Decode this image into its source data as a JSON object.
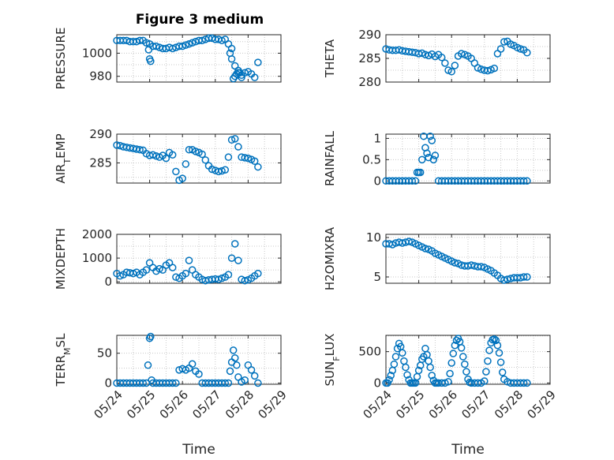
{
  "figure": {
    "title": "Figure 3 medium",
    "xlabel": "Time",
    "marker_color": "#0072bd"
  },
  "chart_data": [
    {
      "type": "scatter",
      "ylabel": "PRESSURE",
      "title": "Figure 3 medium",
      "xlim": [
        0,
        5
      ],
      "ylim": [
        975,
        1016
      ],
      "yticks": [
        980,
        1000
      ],
      "grid": true,
      "x": [
        0.0,
        0.1,
        0.2,
        0.3,
        0.4,
        0.5,
        0.6,
        0.7,
        0.8,
        0.9,
        1.0,
        1.1,
        1.2,
        1.3,
        1.4,
        1.5,
        1.6,
        1.7,
        1.8,
        1.9,
        2.0,
        2.1,
        2.2,
        2.3,
        2.4,
        2.5,
        2.6,
        2.7,
        2.8,
        2.9,
        3.0,
        3.1,
        3.2,
        3.3,
        3.4,
        3.5,
        3.6,
        3.7,
        3.8,
        3.9,
        4.0,
        4.1,
        4.2,
        4.3,
        0.97,
        1.0,
        1.03,
        3.45,
        3.5,
        3.55,
        3.6,
        3.65,
        3.7,
        3.75,
        3.8
      ],
      "y": [
        1011,
        1011,
        1011,
        1011,
        1010,
        1010,
        1010,
        1011,
        1011,
        1009,
        1008,
        1006,
        1006,
        1005,
        1004,
        1004,
        1005,
        1004,
        1005,
        1006,
        1006,
        1007,
        1008,
        1009,
        1010,
        1011,
        1011,
        1012,
        1013,
        1013,
        1012,
        1012,
        1011,
        1012,
        1008,
        1004,
        989,
        983,
        981,
        983,
        984,
        982,
        979,
        992,
        1003,
        995,
        993,
        1000,
        995,
        978,
        980,
        982,
        985,
        983,
        979
      ]
    },
    {
      "type": "scatter",
      "ylabel": "THETA",
      "xlim": [
        0,
        5
      ],
      "ylim": [
        280,
        290
      ],
      "yticks": [
        280,
        285,
        290
      ],
      "grid": true,
      "x": [
        0.0,
        0.1,
        0.2,
        0.3,
        0.4,
        0.5,
        0.6,
        0.7,
        0.8,
        0.9,
        1.0,
        1.1,
        1.2,
        1.3,
        1.4,
        1.5,
        1.6,
        1.7,
        1.8,
        1.9,
        2.0,
        2.1,
        2.2,
        2.3,
        2.4,
        2.5,
        2.6,
        2.7,
        2.8,
        2.9,
        3.0,
        3.1,
        3.2,
        3.3,
        3.4,
        3.5,
        3.6,
        3.7,
        3.8,
        3.9,
        4.0,
        4.1,
        4.2,
        4.3
      ],
      "y": [
        287,
        286.8,
        286.7,
        286.7,
        286.8,
        286.6,
        286.5,
        286.4,
        286.3,
        286.2,
        286,
        286.1,
        285.8,
        285.6,
        285.9,
        285.4,
        285.8,
        285.2,
        284,
        282.5,
        282.2,
        283.5,
        285.5,
        286,
        285.8,
        285.5,
        285,
        284,
        283,
        282.7,
        282.5,
        282.4,
        282.6,
        282.9,
        286,
        287,
        288.5,
        288.6,
        288,
        287.7,
        287.3,
        287,
        286.8,
        286.2
      ]
    },
    {
      "type": "scatter",
      "ylabel": "AIR_TEMP",
      "xlim": [
        0,
        5
      ],
      "ylim": [
        281.5,
        290
      ],
      "yticks": [
        285,
        290
      ],
      "grid": true,
      "x": [
        0.0,
        0.1,
        0.2,
        0.3,
        0.4,
        0.5,
        0.6,
        0.7,
        0.8,
        0.9,
        1.0,
        1.1,
        1.2,
        1.3,
        1.4,
        1.5,
        1.6,
        1.7,
        1.8,
        1.9,
        2.0,
        2.1,
        2.2,
        2.3,
        2.4,
        2.5,
        2.6,
        2.7,
        2.8,
        2.9,
        3.0,
        3.1,
        3.2,
        3.3,
        3.4,
        3.5,
        3.6,
        3.7,
        3.8,
        3.9,
        4.0,
        4.1,
        4.2,
        4.3
      ],
      "y": [
        288.1,
        288,
        287.8,
        287.7,
        287.6,
        287.5,
        287.4,
        287.3,
        287.2,
        286.6,
        286.3,
        286.4,
        286.2,
        286,
        286.3,
        285.8,
        286.8,
        286.4,
        283.5,
        282,
        282.3,
        284.8,
        287.3,
        287.3,
        287,
        286.8,
        286.5,
        285.5,
        284.5,
        283.9,
        283.7,
        283.5,
        283.6,
        283.8,
        286,
        289,
        289.2,
        287.8,
        286,
        285.9,
        285.8,
        285.6,
        285.3,
        284.3
      ]
    },
    {
      "type": "scatter",
      "ylabel": "RAINFALL",
      "xlim": [
        0,
        5
      ],
      "ylim": [
        -0.05,
        1.1
      ],
      "yticks": [
        0,
        0.5,
        1
      ],
      "ytick_labels": [
        "0",
        "0.5",
        "1"
      ],
      "grid": true,
      "x": [
        0.0,
        0.1,
        0.2,
        0.3,
        0.4,
        0.5,
        0.6,
        0.7,
        0.8,
        0.9,
        0.95,
        1.0,
        1.05,
        1.1,
        1.15,
        1.2,
        1.25,
        1.3,
        1.35,
        1.4,
        1.45,
        1.5,
        1.6,
        1.7,
        1.8,
        1.9,
        2.0,
        2.1,
        2.2,
        2.3,
        2.4,
        2.5,
        2.6,
        2.7,
        2.8,
        2.9,
        3.0,
        3.1,
        3.2,
        3.3,
        3.4,
        3.5,
        3.6,
        3.7,
        3.8,
        3.9,
        4.0,
        4.1,
        4.2,
        4.3
      ],
      "y": [
        0,
        0,
        0,
        0,
        0,
        0,
        0,
        0,
        0,
        0,
        0.2,
        0.2,
        0.2,
        0.5,
        1.05,
        0.78,
        0.65,
        0.55,
        1.05,
        0.95,
        0.5,
        0.6,
        0,
        0,
        0,
        0,
        0,
        0,
        0,
        0,
        0,
        0,
        0,
        0,
        0,
        0,
        0,
        0,
        0,
        0,
        0,
        0,
        0,
        0,
        0,
        0,
        0,
        0,
        0,
        0
      ]
    },
    {
      "type": "scatter",
      "ylabel": "MIXDEPTH",
      "xlim": [
        0,
        5
      ],
      "ylim": [
        -60,
        2000
      ],
      "yticks": [
        0,
        1000,
        2000
      ],
      "grid": true,
      "x": [
        0.0,
        0.1,
        0.2,
        0.3,
        0.4,
        0.5,
        0.6,
        0.7,
        0.8,
        0.9,
        1.0,
        1.1,
        1.2,
        1.3,
        1.4,
        1.5,
        1.6,
        1.7,
        1.8,
        1.9,
        2.0,
        2.1,
        2.2,
        2.3,
        2.4,
        2.5,
        2.6,
        2.7,
        2.8,
        2.9,
        3.0,
        3.1,
        3.2,
        3.3,
        3.4,
        3.5,
        3.6,
        3.7,
        3.8,
        3.9,
        4.0,
        4.1,
        4.2,
        4.3
      ],
      "y": [
        350,
        250,
        300,
        400,
        380,
        350,
        400,
        300,
        400,
        500,
        800,
        600,
        450,
        550,
        500,
        700,
        800,
        600,
        200,
        150,
        250,
        350,
        900,
        500,
        300,
        200,
        100,
        50,
        80,
        100,
        120,
        100,
        150,
        200,
        300,
        1000,
        1600,
        900,
        100,
        50,
        80,
        150,
        250,
        350
      ]
    },
    {
      "type": "scatter",
      "ylabel": "H2OMIXRA",
      "xlim": [
        0,
        5
      ],
      "ylim": [
        4.2,
        10.4
      ],
      "yticks": [
        5,
        10
      ],
      "grid": true,
      "x": [
        0.0,
        0.1,
        0.2,
        0.3,
        0.4,
        0.5,
        0.6,
        0.7,
        0.8,
        0.9,
        1.0,
        1.1,
        1.2,
        1.3,
        1.4,
        1.5,
        1.6,
        1.7,
        1.8,
        1.9,
        2.0,
        2.1,
        2.2,
        2.3,
        2.4,
        2.5,
        2.6,
        2.7,
        2.8,
        2.9,
        3.0,
        3.1,
        3.2,
        3.3,
        3.4,
        3.5,
        3.6,
        3.7,
        3.8,
        3.9,
        4.0,
        4.1,
        4.2,
        4.3
      ],
      "y": [
        9.2,
        9.2,
        9.1,
        9.3,
        9.4,
        9.3,
        9.4,
        9.5,
        9.4,
        9.2,
        9.0,
        8.8,
        8.6,
        8.5,
        8.3,
        8.0,
        7.8,
        7.6,
        7.4,
        7.2,
        7.0,
        6.8,
        6.7,
        6.5,
        6.4,
        6.4,
        6.5,
        6.4,
        6.3,
        6.3,
        6.2,
        6.0,
        5.8,
        5.5,
        5.2,
        4.8,
        4.6,
        4.7,
        4.8,
        4.9,
        4.9,
        4.9,
        5.0,
        5.0
      ]
    },
    {
      "type": "scatter",
      "ylabel": "TERR_MSL",
      "xlim": [
        0,
        5
      ],
      "ylim": [
        -2,
        80
      ],
      "yticks": [
        0,
        50
      ],
      "grid": true,
      "x": [
        0.0,
        0.1,
        0.2,
        0.3,
        0.4,
        0.5,
        0.6,
        0.7,
        0.8,
        0.9,
        0.95,
        1.0,
        1.03,
        1.06,
        1.1,
        1.2,
        1.3,
        1.4,
        1.5,
        1.6,
        1.7,
        1.8,
        1.9,
        2.0,
        2.1,
        2.2,
        2.3,
        2.4,
        2.5,
        2.6,
        2.7,
        2.8,
        2.9,
        3.0,
        3.1,
        3.2,
        3.3,
        3.4,
        3.45,
        3.5,
        3.55,
        3.6,
        3.65,
        3.7,
        3.8,
        3.9,
        4.0,
        4.1,
        4.2,
        4.3
      ],
      "y": [
        0,
        0,
        0,
        0,
        0,
        0,
        0,
        0,
        0,
        0,
        30,
        75,
        78,
        5,
        0,
        0,
        0,
        0,
        0,
        0,
        0,
        0,
        22,
        24,
        22,
        25,
        32,
        20,
        15,
        0,
        0,
        0,
        0,
        0,
        0,
        0,
        0,
        0,
        20,
        35,
        55,
        42,
        30,
        10,
        2,
        5,
        30,
        22,
        12,
        0
      ]
    },
    {
      "type": "scatter",
      "ylabel": "SUN_FLUX",
      "xlim": [
        0,
        5
      ],
      "ylim": [
        -20,
        760
      ],
      "yticks": [
        0,
        500
      ],
      "grid": true,
      "x": [
        0.0,
        0.05,
        0.1,
        0.15,
        0.2,
        0.25,
        0.3,
        0.35,
        0.4,
        0.45,
        0.5,
        0.55,
        0.6,
        0.65,
        0.7,
        0.75,
        0.8,
        0.85,
        0.9,
        0.95,
        1.0,
        1.05,
        1.1,
        1.15,
        1.2,
        1.25,
        1.3,
        1.35,
        1.4,
        1.45,
        1.5,
        1.55,
        1.6,
        1.7,
        1.8,
        1.9,
        1.95,
        2.0,
        2.05,
        2.1,
        2.15,
        2.2,
        2.25,
        2.3,
        2.35,
        2.4,
        2.45,
        2.5,
        2.55,
        2.6,
        2.7,
        2.8,
        2.9,
        3.0,
        3.05,
        3.1,
        3.15,
        3.2,
        3.25,
        3.3,
        3.35,
        3.4,
        3.45,
        3.5,
        3.55,
        3.6,
        3.7,
        3.8,
        3.9,
        4.0,
        4.1,
        4.2,
        4.3
      ],
      "y": [
        0,
        0,
        50,
        120,
        200,
        300,
        420,
        550,
        630,
        580,
        480,
        350,
        250,
        130,
        50,
        0,
        0,
        0,
        0,
        100,
        200,
        280,
        380,
        420,
        550,
        450,
        350,
        250,
        120,
        40,
        0,
        0,
        0,
        0,
        0,
        20,
        150,
        320,
        470,
        600,
        680,
        710,
        660,
        560,
        420,
        300,
        180,
        60,
        10,
        0,
        0,
        0,
        0,
        30,
        180,
        350,
        520,
        640,
        690,
        700,
        680,
        600,
        480,
        330,
        170,
        60,
        20,
        0,
        0,
        0,
        0,
        0,
        0
      ]
    }
  ],
  "x_axis": {
    "tick_labels": [
      "05/24",
      "05/25",
      "05/26",
      "05/27",
      "05/28",
      "05/29"
    ]
  }
}
